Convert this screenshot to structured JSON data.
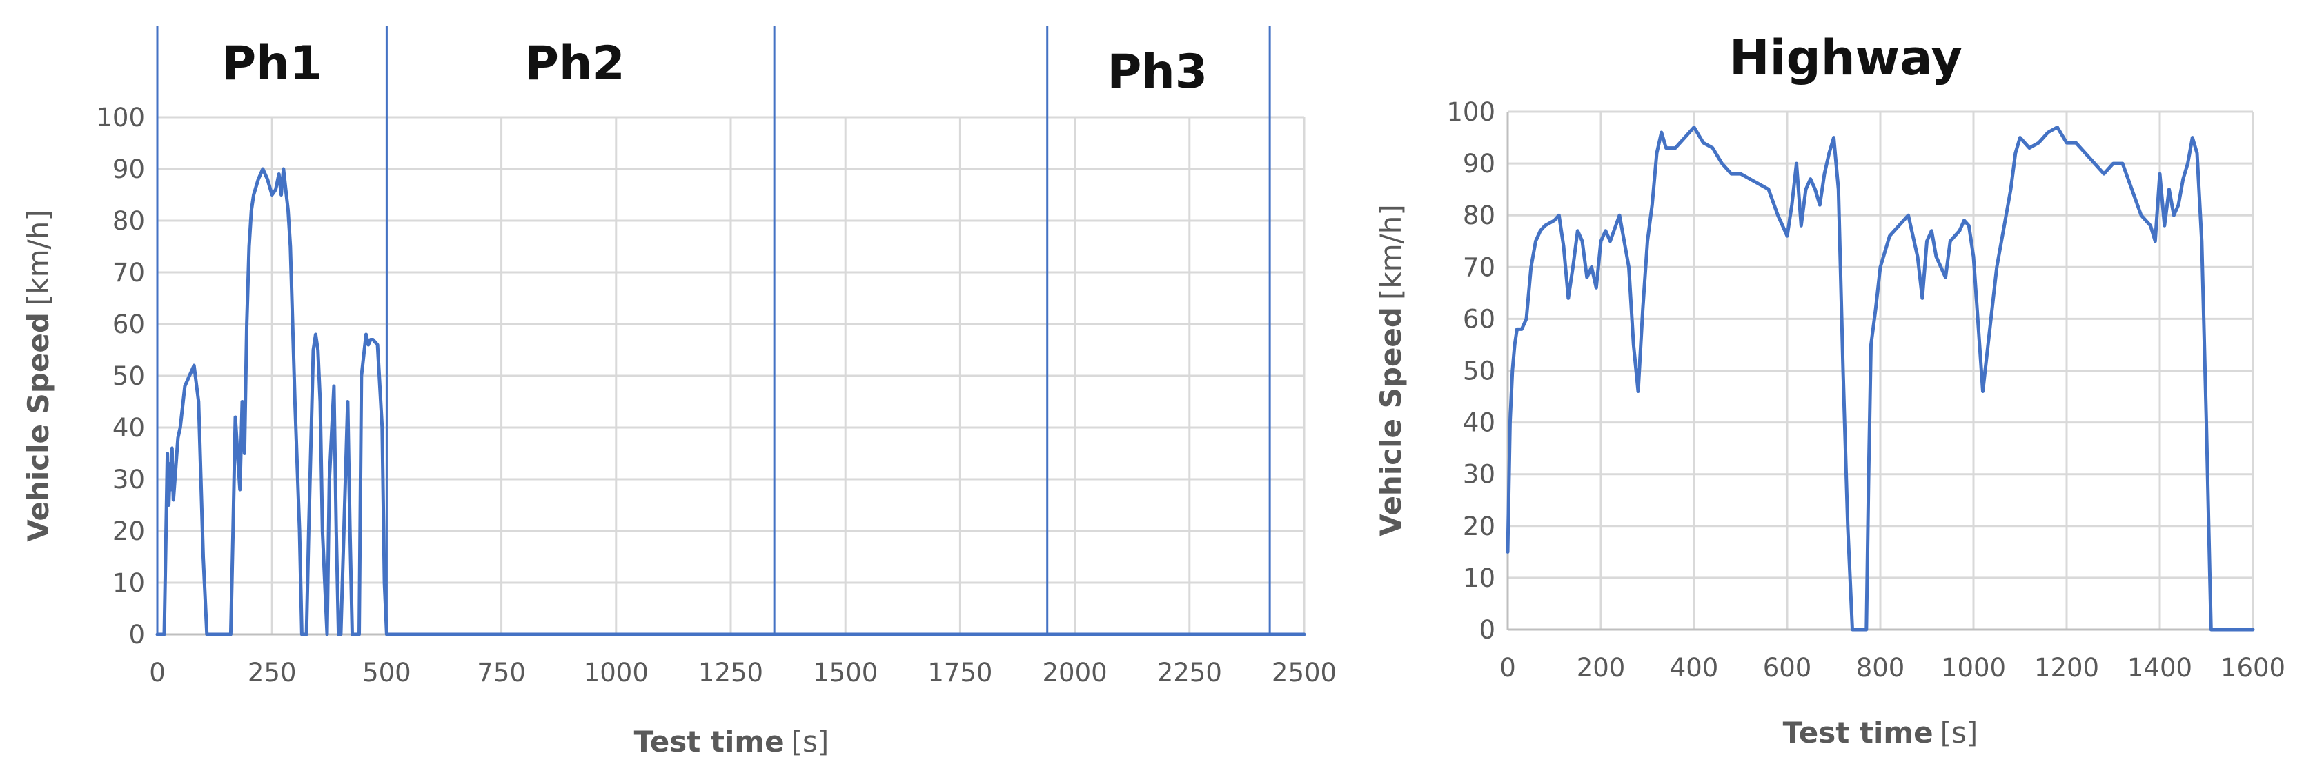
{
  "chart_data": [
    {
      "type": "line",
      "title": "",
      "xlabel": "Test time",
      "xlabel_unit": "[s]",
      "ylabel": "Vehicle Speed",
      "ylabel_unit": "[km/h]",
      "xlim": [
        0,
        2500
      ],
      "ylim": [
        0,
        100
      ],
      "x_ticks": [
        "0",
        "250",
        "500",
        "750",
        "1000",
        "1250",
        "1500",
        "1750",
        "2000",
        "2250",
        "2500"
      ],
      "y_ticks": [
        "0",
        "10",
        "20",
        "30",
        "40",
        "50",
        "60",
        "70",
        "80",
        "90",
        "100"
      ],
      "grid": true,
      "line_color": "#4472c4",
      "phase_dividers": [
        0,
        500,
        1345,
        1940,
        2425
      ],
      "phase_labels": [
        {
          "label": "Ph1",
          "x": 250
        },
        {
          "label": "Ph2",
          "x": 910
        },
        {
          "label": "Ph3",
          "x": 2180
        }
      ],
      "series": [
        {
          "name": "",
          "x": [
            0,
            15,
            22,
            25,
            28,
            30,
            32,
            35,
            40,
            45,
            50,
            60,
            70,
            80,
            90,
            100,
            108,
            112,
            118,
            125,
            135,
            150,
            160,
            165,
            170,
            175,
            180,
            185,
            190,
            195,
            200,
            205,
            210,
            220,
            230,
            240,
            250,
            258,
            265,
            270,
            275,
            280,
            285,
            290,
            300,
            310,
            315,
            320,
            325,
            330,
            340,
            345,
            350,
            355,
            360,
            370,
            375,
            385,
            390,
            395,
            400,
            410,
            415,
            420,
            425,
            430,
            440,
            445,
            455,
            460,
            465,
            470,
            480,
            490,
            495,
            500
          ],
          "y": [
            0,
            0,
            35,
            25,
            33,
            28,
            36,
            26,
            32,
            38,
            40,
            48,
            50,
            52,
            45,
            15,
            0,
            0,
            0,
            0,
            0,
            0,
            0,
            20,
            42,
            35,
            28,
            45,
            35,
            60,
            75,
            82,
            85,
            88,
            90,
            88,
            85,
            86,
            89,
            85,
            90,
            86,
            82,
            75,
            45,
            20,
            0,
            0,
            0,
            20,
            55,
            58,
            55,
            45,
            20,
            0,
            30,
            48,
            20,
            0,
            0,
            30,
            45,
            20,
            0,
            0,
            0,
            50,
            58,
            56,
            57,
            57,
            56,
            40,
            10,
            0
          ]
        }
      ]
    },
    {
      "type": "line",
      "title": "Highway",
      "xlabel": "Test time",
      "xlabel_unit": "[s]",
      "ylabel": "Vehicle Speed",
      "ylabel_unit": "[km/h]",
      "xlim": [
        0,
        1600
      ],
      "ylim": [
        0,
        100
      ],
      "x_ticks": [
        "0",
        "200",
        "400",
        "600",
        "800",
        "1000",
        "1200",
        "1400",
        "1600"
      ],
      "y_ticks": [
        "0",
        "10",
        "20",
        "30",
        "40",
        "50",
        "60",
        "70",
        "80",
        "90",
        "100"
      ],
      "grid": true,
      "line_color": "#4472c4",
      "series": [
        {
          "name": "",
          "x": [
            0,
            5,
            10,
            15,
            20,
            30,
            40,
            50,
            60,
            70,
            80,
            100,
            110,
            120,
            130,
            140,
            150,
            160,
            170,
            180,
            190,
            200,
            210,
            220,
            240,
            250,
            260,
            270,
            280,
            290,
            300,
            310,
            320,
            330,
            340,
            360,
            380,
            400,
            420,
            440,
            460,
            480,
            500,
            520,
            540,
            560,
            580,
            590,
            600,
            610,
            620,
            630,
            640,
            650,
            660,
            670,
            680,
            690,
            700,
            710,
            720,
            730,
            740,
            750,
            760,
            770,
            775,
            780,
            790,
            800,
            820,
            840,
            860,
            880,
            890,
            900,
            910,
            920,
            930,
            940,
            950,
            960,
            970,
            980,
            990,
            1000,
            1020,
            1040,
            1050,
            1060,
            1070,
            1080,
            1090,
            1100,
            1120,
            1140,
            1160,
            1180,
            1200,
            1220,
            1240,
            1260,
            1280,
            1300,
            1320,
            1340,
            1360,
            1380,
            1390,
            1400,
            1410,
            1420,
            1430,
            1440,
            1450,
            1460,
            1470,
            1480,
            1490,
            1500,
            1510
          ],
          "y": [
            15,
            40,
            50,
            55,
            58,
            58,
            60,
            70,
            75,
            77,
            78,
            79,
            80,
            74,
            64,
            70,
            77,
            75,
            68,
            70,
            66,
            75,
            77,
            75,
            80,
            75,
            70,
            55,
            46,
            62,
            75,
            82,
            92,
            96,
            93,
            93,
            95,
            97,
            94,
            93,
            90,
            88,
            88,
            87,
            86,
            85,
            80,
            78,
            76,
            82,
            90,
            78,
            85,
            87,
            85,
            82,
            88,
            92,
            95,
            85,
            50,
            20,
            0,
            0,
            0,
            0,
            30,
            55,
            62,
            70,
            76,
            78,
            80,
            72,
            64,
            75,
            77,
            72,
            70,
            68,
            75,
            76,
            77,
            79,
            78,
            72,
            46,
            62,
            70,
            75,
            80,
            85,
            92,
            95,
            93,
            94,
            96,
            97,
            94,
            94,
            92,
            90,
            88,
            90,
            90,
            85,
            80,
            78,
            75,
            88,
            78,
            85,
            80,
            82,
            87,
            90,
            95,
            92,
            75,
            40,
            0
          ]
        }
      ]
    }
  ]
}
